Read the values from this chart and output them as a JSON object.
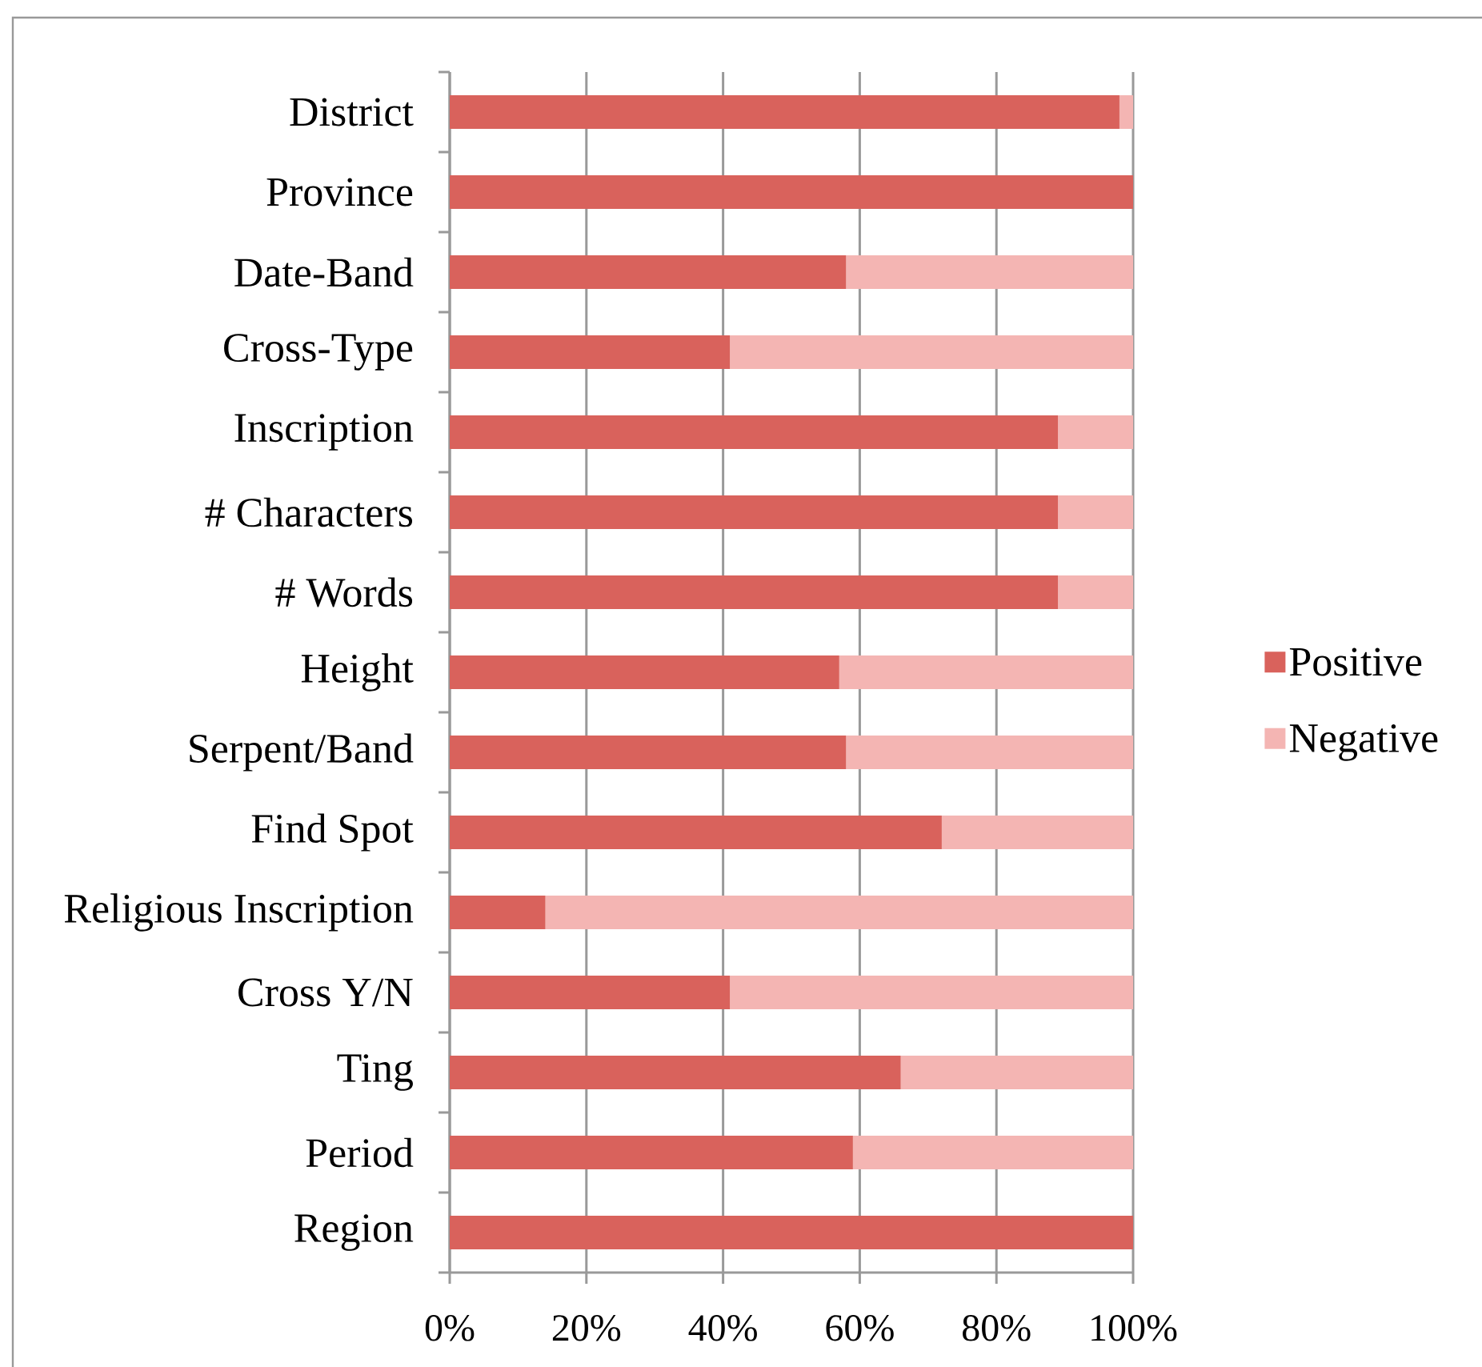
{
  "chart_data": {
    "type": "bar",
    "orientation": "horizontal",
    "stacked": true,
    "categories": [
      "District",
      "Province",
      "Date-Band",
      "Cross-Type",
      "Inscription",
      "# Characters",
      "# Words",
      "Height",
      "Serpent/Band",
      "Find Spot",
      "Religious Inscription",
      "Cross Y/N",
      "Ting",
      "Period",
      "Region"
    ],
    "series": [
      {
        "name": "Positive",
        "color": "#d9625c",
        "values": [
          98,
          100,
          58,
          41,
          89,
          89,
          89,
          57,
          58,
          72,
          14,
          41,
          66,
          59,
          100
        ]
      },
      {
        "name": "Negative",
        "color": "#f4b5b3",
        "values": [
          2,
          0,
          42,
          59,
          11,
          11,
          11,
          43,
          42,
          28,
          86,
          59,
          34,
          41,
          0
        ]
      }
    ],
    "xlim": [
      0,
      100
    ],
    "xticks": [
      {
        "value": 0,
        "label": "0%"
      },
      {
        "value": 20,
        "label": "20%"
      },
      {
        "value": 40,
        "label": "40%"
      },
      {
        "value": 60,
        "label": "60%"
      },
      {
        "value": 80,
        "label": "80%"
      },
      {
        "value": 100,
        "label": "100%"
      }
    ],
    "grid": "x",
    "legend": "right"
  }
}
